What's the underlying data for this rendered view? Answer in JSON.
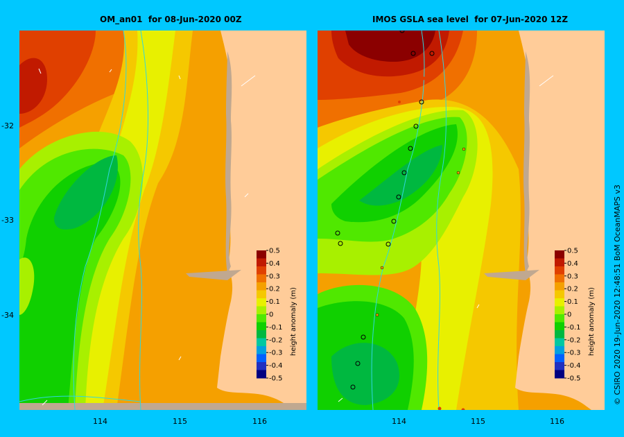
{
  "left_panel": {
    "title": "OM_an01  for 08-Jun-2020 00Z"
  },
  "right_panel": {
    "title": "IMOS GSLA sea level  for 07-Jun-2020 12Z"
  },
  "axes": {
    "lat_ticks": [
      "-32",
      "-33",
      "-34"
    ],
    "lon_ticks": [
      "114",
      "115",
      "116"
    ]
  },
  "colorbar": {
    "label": "height anomaly (m)",
    "ticks": [
      "0.5",
      "0.4",
      "0.3",
      "0.2",
      "0.1",
      "0",
      "-0.1",
      "-0.2",
      "-0.3",
      "-0.4",
      "-0.5"
    ],
    "colors": [
      "#8b0000",
      "#c11a00",
      "#e04000",
      "#f07000",
      "#f5a000",
      "#f5c800",
      "#e8f000",
      "#a8f000",
      "#50e800",
      "#10d000",
      "#00b840",
      "#00c8a0",
      "#00a0e0",
      "#0060ff",
      "#2030c0",
      "#000080"
    ]
  },
  "map_colors": {
    "land": "#ffcc99",
    "shelf_land": "#c0a890",
    "isobath": "#30d8e0"
  },
  "credit": "© CSIRO 2020   19-Jun-2020 12:48:51 BoM OceanMAPS v3"
}
